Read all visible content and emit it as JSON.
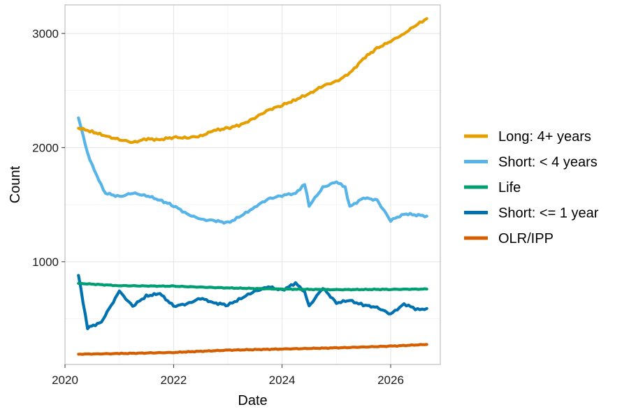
{
  "chart_data": {
    "type": "line",
    "title": "",
    "xlabel": "Date",
    "ylabel": "Count",
    "xlim": [
      "2020-01-01",
      "2026-12-01"
    ],
    "ylim": [
      100,
      3250
    ],
    "x_ticks": [
      "2020-01-01",
      "2022-01-01",
      "2024-01-01",
      "2026-01-01"
    ],
    "x_tick_labels": [
      "2020",
      "2022",
      "2024",
      "2026"
    ],
    "y_ticks": [
      1000,
      2000,
      3000
    ],
    "y_tick_labels": [
      "1000",
      "2000",
      "3000"
    ],
    "grid": true,
    "legend_position": "right",
    "series": [
      {
        "name": "Long: 4+ years",
        "color": "#E69F00",
        "points": [
          [
            "2020-04-01",
            2170
          ],
          [
            "2020-07-01",
            2140
          ],
          [
            "2020-10-01",
            2100
          ],
          [
            "2021-01-01",
            2070
          ],
          [
            "2021-04-01",
            2045
          ],
          [
            "2021-07-01",
            2075
          ],
          [
            "2021-10-01",
            2070
          ],
          [
            "2022-01-01",
            2090
          ],
          [
            "2022-04-01",
            2085
          ],
          [
            "2022-07-01",
            2100
          ],
          [
            "2022-10-01",
            2150
          ],
          [
            "2023-01-01",
            2170
          ],
          [
            "2023-04-01",
            2200
          ],
          [
            "2023-07-01",
            2260
          ],
          [
            "2023-10-01",
            2330
          ],
          [
            "2024-01-01",
            2370
          ],
          [
            "2024-04-01",
            2420
          ],
          [
            "2024-07-01",
            2470
          ],
          [
            "2024-10-01",
            2540
          ],
          [
            "2025-01-01",
            2580
          ],
          [
            "2025-04-01",
            2650
          ],
          [
            "2025-07-01",
            2780
          ],
          [
            "2025-10-01",
            2870
          ],
          [
            "2026-01-01",
            2930
          ],
          [
            "2026-04-01",
            3000
          ],
          [
            "2026-07-01",
            3080
          ],
          [
            "2026-09-01",
            3130
          ]
        ]
      },
      {
        "name": "Short: < 4 years",
        "color": "#56B4E9",
        "points": [
          [
            "2020-04-01",
            2260
          ],
          [
            "2020-06-01",
            1950
          ],
          [
            "2020-08-01",
            1750
          ],
          [
            "2020-10-01",
            1600
          ],
          [
            "2021-01-01",
            1570
          ],
          [
            "2021-04-01",
            1600
          ],
          [
            "2021-07-01",
            1580
          ],
          [
            "2021-10-01",
            1540
          ],
          [
            "2022-01-01",
            1490
          ],
          [
            "2022-04-01",
            1420
          ],
          [
            "2022-07-01",
            1370
          ],
          [
            "2022-10-01",
            1360
          ],
          [
            "2023-01-01",
            1340
          ],
          [
            "2023-04-01",
            1400
          ],
          [
            "2023-07-01",
            1480
          ],
          [
            "2023-10-01",
            1550
          ],
          [
            "2024-01-01",
            1580
          ],
          [
            "2024-04-01",
            1600
          ],
          [
            "2024-06-01",
            1680
          ],
          [
            "2024-07-01",
            1490
          ],
          [
            "2024-10-01",
            1650
          ],
          [
            "2025-01-01",
            1700
          ],
          [
            "2025-03-01",
            1650
          ],
          [
            "2025-04-01",
            1480
          ],
          [
            "2025-07-01",
            1560
          ],
          [
            "2025-10-01",
            1540
          ],
          [
            "2026-01-01",
            1360
          ],
          [
            "2026-04-01",
            1420
          ],
          [
            "2026-09-01",
            1400
          ]
        ]
      },
      {
        "name": "Life",
        "color": "#009E73",
        "points": [
          [
            "2020-04-01",
            810
          ],
          [
            "2021-01-01",
            790
          ],
          [
            "2022-01-01",
            785
          ],
          [
            "2023-01-01",
            770
          ],
          [
            "2024-01-01",
            760
          ],
          [
            "2025-01-01",
            755
          ],
          [
            "2026-01-01",
            758
          ],
          [
            "2026-09-01",
            760
          ]
        ]
      },
      {
        "name": "Short: <= 1 year",
        "color": "#0072B2",
        "points": [
          [
            "2020-04-01",
            880
          ],
          [
            "2020-06-01",
            420
          ],
          [
            "2020-09-01",
            470
          ],
          [
            "2021-01-01",
            740
          ],
          [
            "2021-04-01",
            610
          ],
          [
            "2021-07-01",
            700
          ],
          [
            "2021-10-01",
            720
          ],
          [
            "2022-01-01",
            610
          ],
          [
            "2022-04-01",
            630
          ],
          [
            "2022-07-01",
            680
          ],
          [
            "2022-10-01",
            640
          ],
          [
            "2023-01-01",
            620
          ],
          [
            "2023-04-01",
            680
          ],
          [
            "2023-07-01",
            740
          ],
          [
            "2023-10-01",
            780
          ],
          [
            "2024-01-01",
            750
          ],
          [
            "2024-04-01",
            810
          ],
          [
            "2024-06-01",
            740
          ],
          [
            "2024-07-01",
            610
          ],
          [
            "2024-10-01",
            770
          ],
          [
            "2025-01-01",
            640
          ],
          [
            "2025-04-01",
            660
          ],
          [
            "2025-07-01",
            620
          ],
          [
            "2025-10-01",
            600
          ],
          [
            "2026-01-01",
            540
          ],
          [
            "2026-04-01",
            630
          ],
          [
            "2026-07-01",
            580
          ],
          [
            "2026-09-01",
            590
          ]
        ]
      },
      {
        "name": "OLR/IPP",
        "color": "#D55E00",
        "points": [
          [
            "2020-04-01",
            190
          ],
          [
            "2021-01-01",
            195
          ],
          [
            "2022-01-01",
            205
          ],
          [
            "2023-01-01",
            225
          ],
          [
            "2024-01-01",
            235
          ],
          [
            "2025-01-01",
            245
          ],
          [
            "2026-01-01",
            260
          ],
          [
            "2026-09-01",
            275
          ]
        ]
      }
    ]
  }
}
